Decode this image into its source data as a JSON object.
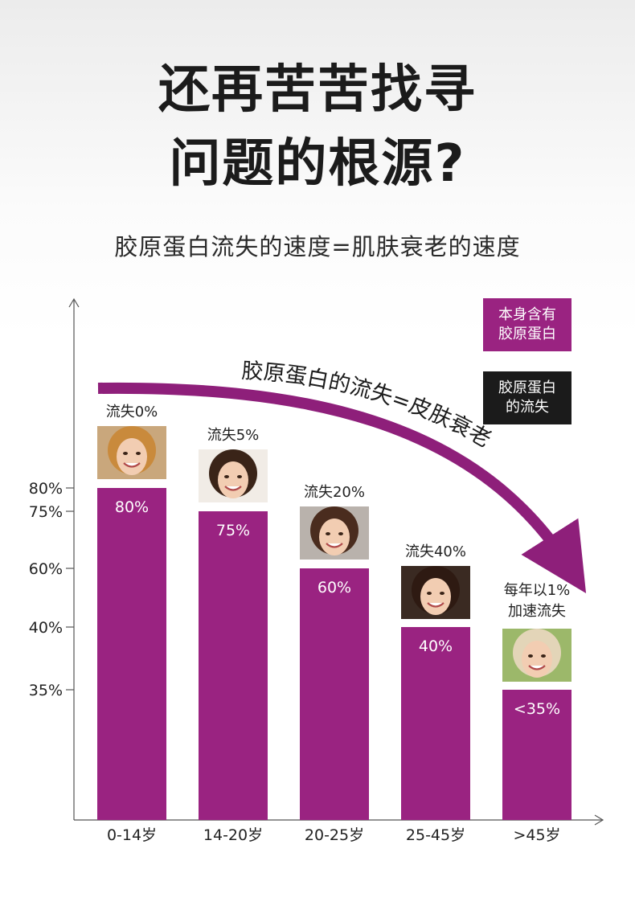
{
  "header": {
    "line1": "还再苦苦找寻",
    "line2": "问题的根源?",
    "subtitle": "胶原蛋白流失的速度=肌肤衰老的速度"
  },
  "legend": {
    "inherent": [
      "本身含有",
      "胶原蛋白"
    ],
    "loss": [
      "胶原蛋白",
      "的流失"
    ]
  },
  "colors": {
    "bar": "#9a2381",
    "arrow": "#8e1f7a",
    "dark": "#1b1b1b"
  },
  "chart_data": {
    "type": "bar",
    "categories": [
      "0-14岁",
      "14-20岁",
      "20-25岁",
      "25-45岁",
      ">45岁"
    ],
    "values": [
      80,
      75,
      60,
      40,
      35
    ],
    "data_labels": [
      "80%",
      "75%",
      "60%",
      "40%",
      "<35%"
    ],
    "loss_labels": [
      "流失0%",
      "流失5%",
      "流失20%",
      "流失40%"
    ],
    "last_note": [
      "每年以1%",
      "加速流失"
    ],
    "y_ticks": [
      {
        "value": 80,
        "label": "80%"
      },
      {
        "value": 75,
        "label": "75%"
      },
      {
        "value": 60,
        "label": "60%"
      },
      {
        "value": 40,
        "label": "40%"
      },
      {
        "value": 35,
        "label": "35%"
      }
    ],
    "arrow_text": "胶原蛋白的流失=皮肤衰老",
    "photos": [
      "child-photo",
      "young-woman-photo",
      "smiling-woman-photo",
      "woman-photo",
      "elderly-woman-photo"
    ],
    "grid": false
  }
}
